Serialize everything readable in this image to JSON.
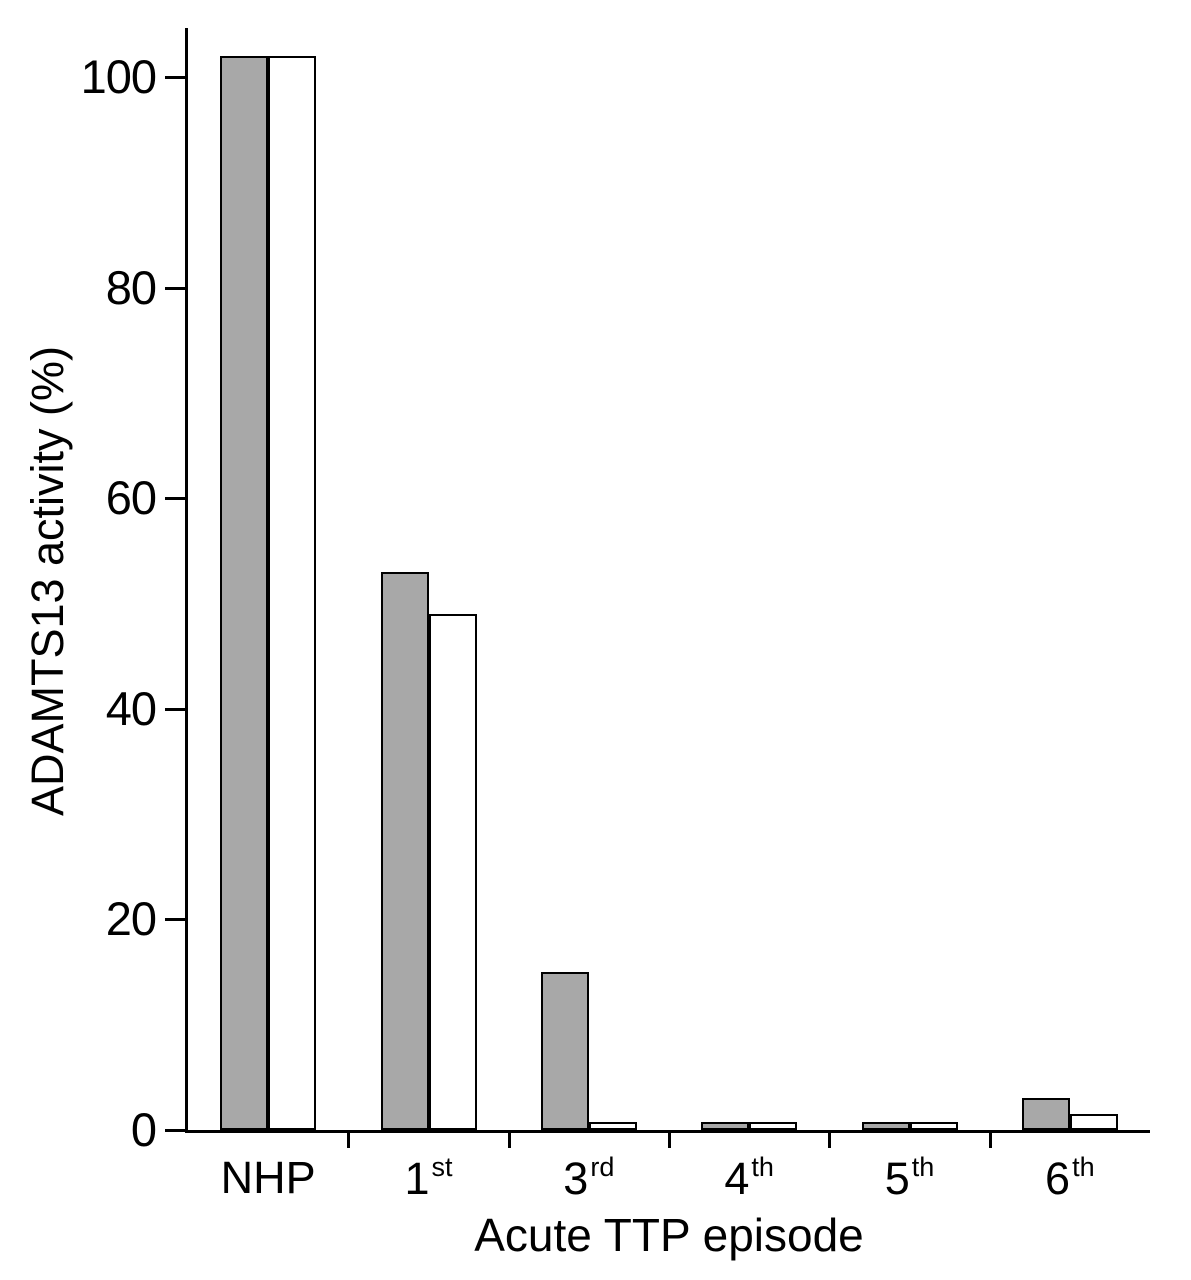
{
  "chart_data": {
    "type": "bar",
    "title": "",
    "xlabel": "Acute TTP episode",
    "ylabel": "ADAMTS13 activity (%)",
    "categories": [
      "NHP",
      "1st",
      "3rd",
      "4th",
      "5th",
      "6th"
    ],
    "category_parts": [
      {
        "base": "NHP",
        "sup": ""
      },
      {
        "base": "1",
        "sup": "st"
      },
      {
        "base": "3",
        "sup": "rd"
      },
      {
        "base": "4",
        "sup": "th"
      },
      {
        "base": "5",
        "sup": "th"
      },
      {
        "base": "6",
        "sup": "th"
      }
    ],
    "series": [
      {
        "name": "gray-bar",
        "color": "#a8a8a8",
        "values": [
          102,
          53,
          15,
          0.8,
          0.8,
          3
        ]
      },
      {
        "name": "white-bar",
        "color": "#ffffff",
        "values": [
          102,
          49,
          0.8,
          0.8,
          0.8,
          1.5
        ]
      }
    ],
    "yticks": [
      0,
      20,
      40,
      60,
      80,
      100
    ],
    "ylim": [
      0,
      104.5
    ],
    "bar_border_color": "#000000",
    "axis_color": "#000000",
    "grid": false,
    "legend": false
  }
}
